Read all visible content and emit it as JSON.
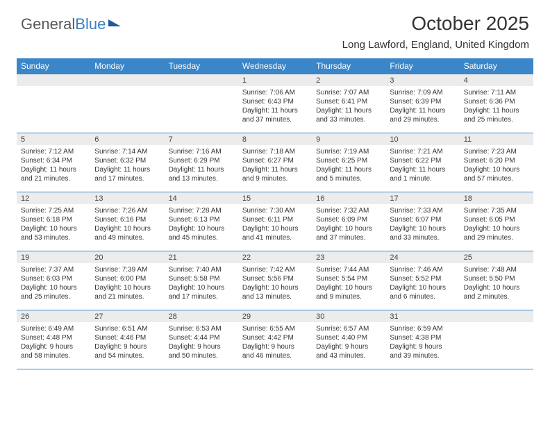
{
  "logo": {
    "part1": "General",
    "part2": "Blue"
  },
  "title": "October 2025",
  "location": "Long Lawford, England, United Kingdom",
  "colors": {
    "header_bg": "#3a86c8",
    "date_bar_bg": "#ececec",
    "border": "#3a86c8",
    "text": "#333333",
    "logo_gray": "#5a5a5a",
    "logo_blue": "#3a7fc4"
  },
  "day_headers": [
    "Sunday",
    "Monday",
    "Tuesday",
    "Wednesday",
    "Thursday",
    "Friday",
    "Saturday"
  ],
  "weeks": [
    [
      {
        "date": "",
        "sunrise": "",
        "sunset": "",
        "daylight": ""
      },
      {
        "date": "",
        "sunrise": "",
        "sunset": "",
        "daylight": ""
      },
      {
        "date": "",
        "sunrise": "",
        "sunset": "",
        "daylight": ""
      },
      {
        "date": "1",
        "sunrise": "Sunrise: 7:06 AM",
        "sunset": "Sunset: 6:43 PM",
        "daylight": "Daylight: 11 hours and 37 minutes."
      },
      {
        "date": "2",
        "sunrise": "Sunrise: 7:07 AM",
        "sunset": "Sunset: 6:41 PM",
        "daylight": "Daylight: 11 hours and 33 minutes."
      },
      {
        "date": "3",
        "sunrise": "Sunrise: 7:09 AM",
        "sunset": "Sunset: 6:39 PM",
        "daylight": "Daylight: 11 hours and 29 minutes."
      },
      {
        "date": "4",
        "sunrise": "Sunrise: 7:11 AM",
        "sunset": "Sunset: 6:36 PM",
        "daylight": "Daylight: 11 hours and 25 minutes."
      }
    ],
    [
      {
        "date": "5",
        "sunrise": "Sunrise: 7:12 AM",
        "sunset": "Sunset: 6:34 PM",
        "daylight": "Daylight: 11 hours and 21 minutes."
      },
      {
        "date": "6",
        "sunrise": "Sunrise: 7:14 AM",
        "sunset": "Sunset: 6:32 PM",
        "daylight": "Daylight: 11 hours and 17 minutes."
      },
      {
        "date": "7",
        "sunrise": "Sunrise: 7:16 AM",
        "sunset": "Sunset: 6:29 PM",
        "daylight": "Daylight: 11 hours and 13 minutes."
      },
      {
        "date": "8",
        "sunrise": "Sunrise: 7:18 AM",
        "sunset": "Sunset: 6:27 PM",
        "daylight": "Daylight: 11 hours and 9 minutes."
      },
      {
        "date": "9",
        "sunrise": "Sunrise: 7:19 AM",
        "sunset": "Sunset: 6:25 PM",
        "daylight": "Daylight: 11 hours and 5 minutes."
      },
      {
        "date": "10",
        "sunrise": "Sunrise: 7:21 AM",
        "sunset": "Sunset: 6:22 PM",
        "daylight": "Daylight: 11 hours and 1 minute."
      },
      {
        "date": "11",
        "sunrise": "Sunrise: 7:23 AM",
        "sunset": "Sunset: 6:20 PM",
        "daylight": "Daylight: 10 hours and 57 minutes."
      }
    ],
    [
      {
        "date": "12",
        "sunrise": "Sunrise: 7:25 AM",
        "sunset": "Sunset: 6:18 PM",
        "daylight": "Daylight: 10 hours and 53 minutes."
      },
      {
        "date": "13",
        "sunrise": "Sunrise: 7:26 AM",
        "sunset": "Sunset: 6:16 PM",
        "daylight": "Daylight: 10 hours and 49 minutes."
      },
      {
        "date": "14",
        "sunrise": "Sunrise: 7:28 AM",
        "sunset": "Sunset: 6:13 PM",
        "daylight": "Daylight: 10 hours and 45 minutes."
      },
      {
        "date": "15",
        "sunrise": "Sunrise: 7:30 AM",
        "sunset": "Sunset: 6:11 PM",
        "daylight": "Daylight: 10 hours and 41 minutes."
      },
      {
        "date": "16",
        "sunrise": "Sunrise: 7:32 AM",
        "sunset": "Sunset: 6:09 PM",
        "daylight": "Daylight: 10 hours and 37 minutes."
      },
      {
        "date": "17",
        "sunrise": "Sunrise: 7:33 AM",
        "sunset": "Sunset: 6:07 PM",
        "daylight": "Daylight: 10 hours and 33 minutes."
      },
      {
        "date": "18",
        "sunrise": "Sunrise: 7:35 AM",
        "sunset": "Sunset: 6:05 PM",
        "daylight": "Daylight: 10 hours and 29 minutes."
      }
    ],
    [
      {
        "date": "19",
        "sunrise": "Sunrise: 7:37 AM",
        "sunset": "Sunset: 6:03 PM",
        "daylight": "Daylight: 10 hours and 25 minutes."
      },
      {
        "date": "20",
        "sunrise": "Sunrise: 7:39 AM",
        "sunset": "Sunset: 6:00 PM",
        "daylight": "Daylight: 10 hours and 21 minutes."
      },
      {
        "date": "21",
        "sunrise": "Sunrise: 7:40 AM",
        "sunset": "Sunset: 5:58 PM",
        "daylight": "Daylight: 10 hours and 17 minutes."
      },
      {
        "date": "22",
        "sunrise": "Sunrise: 7:42 AM",
        "sunset": "Sunset: 5:56 PM",
        "daylight": "Daylight: 10 hours and 13 minutes."
      },
      {
        "date": "23",
        "sunrise": "Sunrise: 7:44 AM",
        "sunset": "Sunset: 5:54 PM",
        "daylight": "Daylight: 10 hours and 9 minutes."
      },
      {
        "date": "24",
        "sunrise": "Sunrise: 7:46 AM",
        "sunset": "Sunset: 5:52 PM",
        "daylight": "Daylight: 10 hours and 6 minutes."
      },
      {
        "date": "25",
        "sunrise": "Sunrise: 7:48 AM",
        "sunset": "Sunset: 5:50 PM",
        "daylight": "Daylight: 10 hours and 2 minutes."
      }
    ],
    [
      {
        "date": "26",
        "sunrise": "Sunrise: 6:49 AM",
        "sunset": "Sunset: 4:48 PM",
        "daylight": "Daylight: 9 hours and 58 minutes."
      },
      {
        "date": "27",
        "sunrise": "Sunrise: 6:51 AM",
        "sunset": "Sunset: 4:46 PM",
        "daylight": "Daylight: 9 hours and 54 minutes."
      },
      {
        "date": "28",
        "sunrise": "Sunrise: 6:53 AM",
        "sunset": "Sunset: 4:44 PM",
        "daylight": "Daylight: 9 hours and 50 minutes."
      },
      {
        "date": "29",
        "sunrise": "Sunrise: 6:55 AM",
        "sunset": "Sunset: 4:42 PM",
        "daylight": "Daylight: 9 hours and 46 minutes."
      },
      {
        "date": "30",
        "sunrise": "Sunrise: 6:57 AM",
        "sunset": "Sunset: 4:40 PM",
        "daylight": "Daylight: 9 hours and 43 minutes."
      },
      {
        "date": "31",
        "sunrise": "Sunrise: 6:59 AM",
        "sunset": "Sunset: 4:38 PM",
        "daylight": "Daylight: 9 hours and 39 minutes."
      },
      {
        "date": "",
        "sunrise": "",
        "sunset": "",
        "daylight": ""
      }
    ]
  ]
}
